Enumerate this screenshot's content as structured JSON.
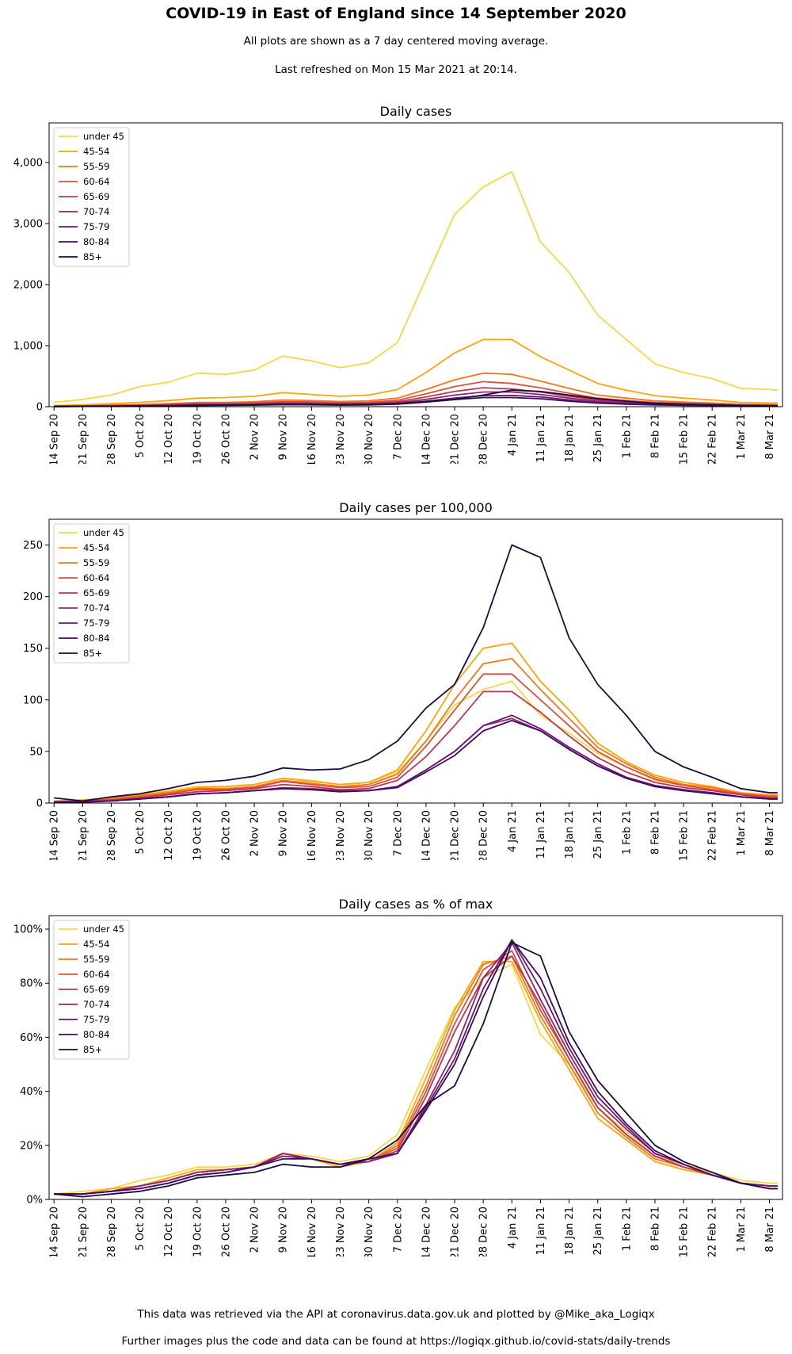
{
  "header": {
    "title": "COVID-19 in East of England since 14 September 2020",
    "subtitle1": "All plots are shown as a 7 day centered moving average.",
    "subtitle2": "Last refreshed on Mon 15 Mar 2021 at 20:14."
  },
  "footer": {
    "line1": "This data was retrieved via the API at coronavirus.data.gov.uk and plotted by @Mike_aka_Logiqx",
    "line2": "Further images plus the code and data can be found at https://logiqx.github.io/covid-stats/daily-trends"
  },
  "series_colors": [
    "#f6d746",
    "#fca50a",
    "#f3761b",
    "#dd513a",
    "#bc3754",
    "#932667",
    "#6a176e",
    "#420a68",
    "#1b0c41"
  ],
  "x_tick_labels": [
    "14 Sep 20",
    "21 Sep 20",
    "28 Sep 20",
    "5 Oct 20",
    "12 Oct 20",
    "19 Oct 20",
    "26 Oct 20",
    "2 Nov 20",
    "9 Nov 20",
    "16 Nov 20",
    "23 Nov 20",
    "30 Nov 20",
    "7 Dec 20",
    "14 Dec 20",
    "21 Dec 20",
    "28 Dec 20",
    "4 Jan 21",
    "11 Jan 21",
    "18 Jan 21",
    "25 Jan 21",
    "1 Feb 21",
    "8 Feb 21",
    "15 Feb 21",
    "22 Feb 21",
    "1 Mar 21",
    "8 Mar 21"
  ],
  "chart_data": [
    {
      "type": "line",
      "title": "Daily cases",
      "x_range": [
        "2020-09-14",
        "2021-03-10"
      ],
      "x_keypoint_dates": [
        "2020-09-14",
        "2020-09-21",
        "2020-09-28",
        "2020-10-05",
        "2020-10-12",
        "2020-10-19",
        "2020-10-26",
        "2020-11-02",
        "2020-11-09",
        "2020-11-16",
        "2020-11-23",
        "2020-11-30",
        "2020-12-07",
        "2020-12-14",
        "2020-12-21",
        "2020-12-28",
        "2021-01-04",
        "2021-01-11",
        "2021-01-18",
        "2021-01-25",
        "2021-02-01",
        "2021-02-08",
        "2021-02-15",
        "2021-02-22",
        "2021-03-01",
        "2021-03-08",
        "2021-03-10"
      ],
      "ylim": [
        0,
        4650
      ],
      "yticks": [
        0,
        1000,
        2000,
        3000,
        4000
      ],
      "ytick_labels": [
        "0",
        "1,000",
        "2,000",
        "3,000",
        "4,000"
      ],
      "grid": false,
      "legend_placement": "top-left",
      "series": [
        {
          "name": "under 45",
          "values": [
            70,
            120,
            190,
            330,
            400,
            550,
            530,
            600,
            830,
            750,
            640,
            720,
            1050,
            2100,
            3150,
            3600,
            3850,
            2700,
            2200,
            1500,
            1100,
            700,
            560,
            460,
            300,
            280,
            270
          ]
        },
        {
          "name": "45-54",
          "values": [
            20,
            30,
            50,
            70,
            100,
            140,
            150,
            170,
            230,
            200,
            170,
            190,
            280,
            560,
            880,
            1100,
            1100,
            820,
            600,
            380,
            270,
            180,
            140,
            110,
            70,
            60,
            60
          ]
        },
        {
          "name": "55-59",
          "values": [
            10,
            15,
            25,
            35,
            50,
            70,
            70,
            80,
            110,
            100,
            85,
            95,
            140,
            280,
            440,
            550,
            530,
            420,
            300,
            190,
            140,
            95,
            75,
            60,
            40,
            35,
            35
          ]
        },
        {
          "name": "60-64",
          "values": [
            8,
            12,
            20,
            28,
            38,
            55,
            55,
            62,
            85,
            78,
            65,
            72,
            105,
            210,
            330,
            410,
            380,
            310,
            220,
            140,
            100,
            70,
            55,
            45,
            30,
            25,
            25
          ]
        },
        {
          "name": "65-69",
          "values": [
            6,
            10,
            15,
            20,
            28,
            40,
            42,
            48,
            65,
            60,
            50,
            55,
            80,
            160,
            250,
            310,
            290,
            240,
            170,
            110,
            80,
            55,
            45,
            35,
            25,
            20,
            20
          ]
        },
        {
          "name": "70-74",
          "values": [
            5,
            8,
            12,
            16,
            22,
            32,
            34,
            38,
            52,
            48,
            40,
            44,
            62,
            120,
            190,
            240,
            240,
            200,
            140,
            90,
            65,
            45,
            35,
            28,
            20,
            16,
            16
          ]
        },
        {
          "name": "75-79",
          "values": [
            4,
            6,
            9,
            12,
            16,
            24,
            26,
            30,
            40,
            36,
            30,
            34,
            48,
            90,
            140,
            180,
            185,
            160,
            110,
            70,
            50,
            35,
            28,
            22,
            15,
            12,
            12
          ]
        },
        {
          "name": "80-84",
          "values": [
            3,
            5,
            7,
            10,
            13,
            20,
            22,
            25,
            32,
            30,
            25,
            28,
            40,
            75,
            115,
            150,
            150,
            130,
            90,
            58,
            42,
            28,
            22,
            17,
            12,
            10,
            10
          ]
        },
        {
          "name": "85+",
          "values": [
            3,
            5,
            7,
            10,
            14,
            22,
            26,
            30,
            40,
            38,
            32,
            36,
            48,
            85,
            120,
            190,
            270,
            250,
            190,
            130,
            90,
            55,
            40,
            30,
            20,
            15,
            15
          ]
        }
      ]
    },
    {
      "type": "line",
      "title": "Daily cases per 100,000",
      "x_range": [
        "2020-09-14",
        "2021-03-10"
      ],
      "x_keypoint_dates": [
        "2020-09-14",
        "2020-09-21",
        "2020-09-28",
        "2020-10-05",
        "2020-10-12",
        "2020-10-19",
        "2020-10-26",
        "2020-11-02",
        "2020-11-09",
        "2020-11-16",
        "2020-11-23",
        "2020-11-30",
        "2020-12-07",
        "2020-12-14",
        "2020-12-21",
        "2020-12-28",
        "2021-01-04",
        "2021-01-11",
        "2021-01-18",
        "2021-01-25",
        "2021-02-01",
        "2021-02-08",
        "2021-02-15",
        "2021-02-22",
        "2021-03-01",
        "2021-03-08",
        "2021-03-10"
      ],
      "ylim": [
        0,
        275
      ],
      "yticks": [
        0,
        50,
        100,
        150,
        200,
        250
      ],
      "ytick_labels": [
        "0",
        "50",
        "100",
        "150",
        "200",
        "250"
      ],
      "grid": false,
      "legend_placement": "top-left",
      "series": [
        {
          "name": "under 45",
          "values": [
            2,
            3,
            5,
            9,
            12,
            16,
            16,
            18,
            24,
            22,
            18,
            20,
            30,
            60,
            95,
            110,
            118,
            85,
            68,
            48,
            35,
            22,
            17,
            14,
            10,
            8,
            8
          ]
        },
        {
          "name": "45-54",
          "values": [
            2,
            3,
            5,
            8,
            11,
            15,
            16,
            18,
            24,
            21,
            18,
            20,
            32,
            70,
            115,
            150,
            155,
            118,
            90,
            58,
            40,
            27,
            20,
            16,
            10,
            8,
            8
          ]
        },
        {
          "name": "55-59",
          "values": [
            1,
            2,
            4,
            7,
            10,
            14,
            14,
            16,
            22,
            19,
            16,
            18,
            28,
            60,
            100,
            135,
            140,
            110,
            82,
            54,
            38,
            25,
            18,
            15,
            9,
            7,
            7
          ]
        },
        {
          "name": "60-64",
          "values": [
            1,
            2,
            3,
            6,
            9,
            13,
            13,
            15,
            21,
            18,
            15,
            16,
            25,
            55,
            90,
            125,
            125,
            100,
            75,
            50,
            35,
            23,
            17,
            13,
            9,
            6,
            6
          ]
        },
        {
          "name": "65-69",
          "values": [
            1,
            2,
            3,
            5,
            8,
            11,
            12,
            14,
            18,
            16,
            13,
            14,
            22,
            45,
            75,
            108,
            108,
            88,
            65,
            44,
            30,
            20,
            15,
            12,
            8,
            5,
            5
          ]
        },
        {
          "name": "70-74",
          "values": [
            1,
            1,
            2,
            4,
            6,
            9,
            10,
            12,
            15,
            14,
            12,
            12,
            16,
            32,
            50,
            75,
            82,
            70,
            52,
            36,
            24,
            16,
            12,
            10,
            6,
            4,
            4
          ]
        },
        {
          "name": "75-79",
          "values": [
            1,
            1,
            2,
            4,
            6,
            9,
            10,
            12,
            14,
            13,
            11,
            12,
            16,
            32,
            50,
            75,
            85,
            72,
            54,
            38,
            25,
            17,
            13,
            10,
            6,
            4,
            4
          ]
        },
        {
          "name": "80-84",
          "values": [
            1,
            1,
            2,
            4,
            6,
            9,
            10,
            12,
            14,
            13,
            11,
            12,
            15,
            30,
            46,
            70,
            80,
            70,
            52,
            36,
            24,
            16,
            12,
            9,
            6,
            4,
            4
          ]
        },
        {
          "name": "85+",
          "values": [
            5,
            2,
            6,
            9,
            14,
            20,
            22,
            26,
            34,
            32,
            33,
            42,
            60,
            92,
            115,
            170,
            250,
            238,
            160,
            115,
            85,
            50,
            35,
            25,
            14,
            10,
            10
          ]
        }
      ]
    },
    {
      "type": "line",
      "title": "Daily cases as % of max",
      "x_range": [
        "2020-09-14",
        "2021-03-10"
      ],
      "x_keypoint_dates": [
        "2020-09-14",
        "2020-09-21",
        "2020-09-28",
        "2020-10-05",
        "2020-10-12",
        "2020-10-19",
        "2020-10-26",
        "2020-11-02",
        "2020-11-09",
        "2020-11-16",
        "2020-11-23",
        "2020-11-30",
        "2020-12-07",
        "2020-12-14",
        "2020-12-21",
        "2020-12-28",
        "2021-01-04",
        "2021-01-11",
        "2021-01-18",
        "2021-01-25",
        "2021-02-01",
        "2021-02-08",
        "2021-02-15",
        "2021-02-22",
        "2021-03-01",
        "2021-03-08",
        "2021-03-10"
      ],
      "ylim": [
        0,
        105
      ],
      "yticks": [
        0,
        20,
        40,
        60,
        80,
        100
      ],
      "ytick_labels": [
        "0%",
        "20%",
        "40%",
        "60%",
        "80%",
        "100%"
      ],
      "grid": false,
      "legend_placement": "top-left",
      "series": [
        {
          "name": "under 45",
          "values": [
            2,
            3,
            4,
            7,
            9,
            12,
            12,
            13,
            17,
            16,
            14,
            16,
            24,
            48,
            71,
            82,
            87,
            61,
            50,
            34,
            25,
            16,
            13,
            10,
            7,
            6,
            6
          ]
        },
        {
          "name": "45-54",
          "values": [
            2,
            2,
            4,
            5,
            8,
            11,
            11,
            12,
            17,
            15,
            12,
            14,
            21,
            45,
            70,
            88,
            88,
            66,
            48,
            30,
            22,
            14,
            11,
            9,
            6,
            5,
            5
          ]
        },
        {
          "name": "55-59",
          "values": [
            2,
            2,
            3,
            5,
            7,
            10,
            11,
            12,
            17,
            15,
            13,
            14,
            20,
            42,
            68,
            87,
            90,
            68,
            50,
            32,
            23,
            15,
            12,
            9,
            6,
            5,
            5
          ]
        },
        {
          "name": "60-64",
          "values": [
            2,
            2,
            3,
            5,
            7,
            10,
            11,
            12,
            17,
            15,
            13,
            14,
            19,
            40,
            65,
            85,
            92,
            70,
            52,
            34,
            24,
            16,
            12,
            9,
            6,
            5,
            5
          ]
        },
        {
          "name": "65-69",
          "values": [
            2,
            2,
            3,
            5,
            7,
            10,
            11,
            12,
            17,
            15,
            13,
            14,
            18,
            38,
            62,
            82,
            90,
            72,
            52,
            34,
            24,
            16,
            12,
            9,
            6,
            5,
            5
          ]
        },
        {
          "name": "70-74",
          "values": [
            2,
            2,
            3,
            5,
            7,
            10,
            11,
            12,
            17,
            15,
            13,
            14,
            17,
            35,
            55,
            82,
            95,
            74,
            54,
            36,
            26,
            17,
            13,
            9,
            6,
            5,
            5
          ]
        },
        {
          "name": "75-79",
          "values": [
            2,
            2,
            3,
            4,
            6,
            9,
            10,
            12,
            16,
            15,
            13,
            15,
            17,
            34,
            52,
            78,
            96,
            78,
            56,
            38,
            27,
            17,
            13,
            9,
            6,
            5,
            5
          ]
        },
        {
          "name": "80-84",
          "values": [
            2,
            2,
            3,
            4,
            6,
            9,
            10,
            12,
            15,
            15,
            13,
            15,
            17,
            33,
            50,
            75,
            96,
            82,
            58,
            40,
            28,
            18,
            13,
            9,
            6,
            4,
            4
          ]
        },
        {
          "name": "85+",
          "values": [
            2,
            1,
            2,
            3,
            5,
            8,
            9,
            10,
            13,
            12,
            12,
            15,
            22,
            35,
            42,
            65,
            95,
            90,
            62,
            44,
            32,
            20,
            14,
            10,
            6,
            4,
            4
          ]
        }
      ]
    }
  ]
}
